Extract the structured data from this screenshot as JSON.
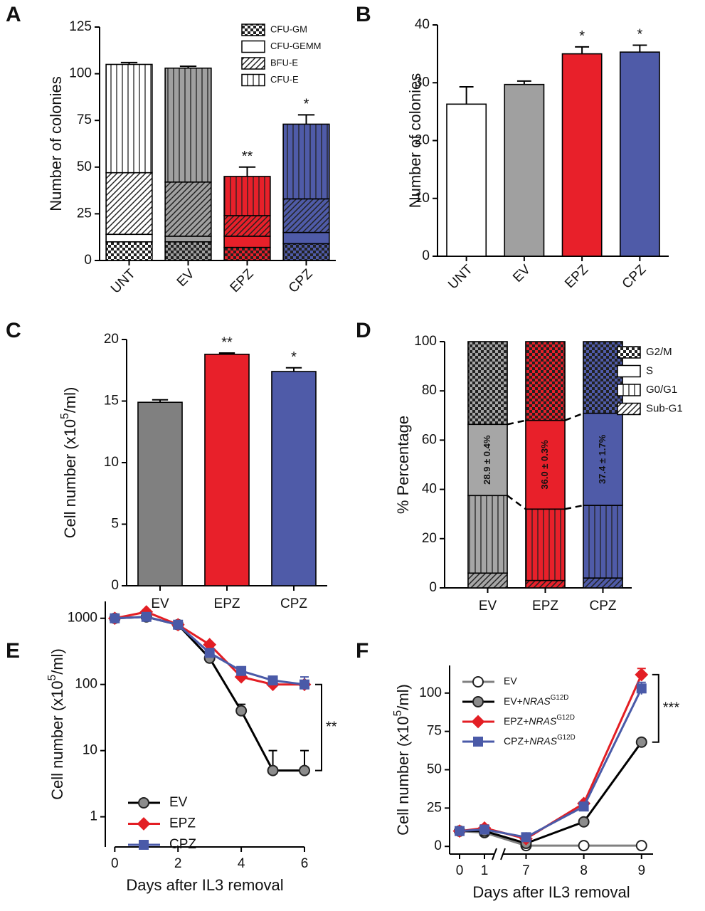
{
  "chart_data": [
    {
      "panel": "A",
      "type": "stacked_bar",
      "ylabel": "Number of colonies",
      "categories": [
        "UNT",
        "EV",
        "EPZ",
        "CPZ"
      ],
      "bar_colors": [
        "#ffffff",
        "#a0a0a0",
        "#e8202a",
        "#4f5ba8"
      ],
      "series": [
        {
          "name": "CFU-GM",
          "pattern": "checker",
          "values": [
            10,
            10,
            7,
            9
          ]
        },
        {
          "name": "CFU-GEMM",
          "pattern": "none",
          "values": [
            4,
            3,
            6,
            6
          ]
        },
        {
          "name": "BFU-E",
          "pattern": "diagonal",
          "values": [
            33,
            29,
            11,
            18
          ]
        },
        {
          "name": "CFU-E",
          "pattern": "vertical",
          "values": [
            58,
            61,
            21,
            40
          ],
          "errors": [
            1,
            1,
            5,
            5
          ]
        }
      ],
      "ylim": [
        0,
        125
      ],
      "yticks": [
        0,
        25,
        50,
        75,
        100,
        125
      ],
      "annotations": [
        {
          "text": "**",
          "category": "EPZ"
        },
        {
          "text": "*",
          "category": "CPZ"
        }
      ]
    },
    {
      "panel": "B",
      "type": "bar",
      "ylabel": "Number of colonies",
      "categories": [
        "UNT",
        "EV",
        "EPZ",
        "CPZ"
      ],
      "bar_colors": [
        "#ffffff",
        "#a0a0a0",
        "#e8202a",
        "#4f5ba8"
      ],
      "values": [
        26.3,
        29.7,
        35,
        35.3
      ],
      "errors": [
        3,
        0.6,
        1.2,
        1.2
      ],
      "ylim": [
        0,
        40
      ],
      "yticks": [
        0,
        10,
        20,
        30,
        40
      ],
      "annotations": [
        {
          "text": "*",
          "category": "EPZ"
        },
        {
          "text": "*",
          "category": "CPZ"
        }
      ]
    },
    {
      "panel": "C",
      "type": "bar",
      "ylabel": [
        "Cell number  (x10",
        "5",
        "/ml)"
      ],
      "categories": [
        "EV",
        "EPZ",
        "CPZ"
      ],
      "bar_colors": [
        "#808080",
        "#e8202a",
        "#4f5ba8"
      ],
      "values": [
        14.9,
        18.8,
        17.4
      ],
      "errors": [
        0.2,
        0.1,
        0.3
      ],
      "ylim": [
        0,
        20
      ],
      "yticks": [
        0,
        5,
        10,
        15,
        20
      ],
      "annotations": [
        {
          "text": "**",
          "category": "EPZ"
        },
        {
          "text": "*",
          "category": "CPZ"
        }
      ]
    },
    {
      "panel": "D",
      "type": "stacked_bar",
      "ylabel": "% Percentage",
      "categories": [
        "EV",
        "EPZ",
        "CPZ"
      ],
      "bar_colors": [
        "#a6a6a6",
        "#e8202a",
        "#4f5ba8"
      ],
      "series": [
        {
          "name": "Sub-G1",
          "pattern": "diagonal",
          "values": [
            6,
            3,
            4
          ]
        },
        {
          "name": "G0/G1",
          "pattern": "vertical",
          "values": [
            31.5,
            29,
            29.5
          ]
        },
        {
          "name": "S",
          "pattern": "none",
          "values": [
            28.9,
            36,
            37.4
          ],
          "value_labels": [
            "28.9 ± 0.4%",
            "36.0 ± 0.3%",
            "37.4 ± 1.7%"
          ]
        },
        {
          "name": "G2/M",
          "pattern": "checker",
          "values": [
            33.6,
            32,
            29.1
          ]
        }
      ],
      "ylim": [
        0,
        100
      ],
      "yticks": [
        0,
        20,
        40,
        60,
        80,
        100
      ]
    },
    {
      "panel": "E",
      "type": "line",
      "yscale": "log",
      "xlabel": "Days after IL3 removal",
      "ylabel": [
        "Cell number  (x10",
        "5",
        "/ml)"
      ],
      "x": [
        0,
        1,
        2,
        3,
        4,
        5,
        6
      ],
      "xlim": [
        -0.3,
        6
      ],
      "xticks": [
        0,
        2,
        4,
        6
      ],
      "ylim": [
        0.35,
        1800
      ],
      "yticks": [
        1,
        10,
        100,
        1000
      ],
      "series": [
        {
          "name": "EV",
          "color": "#000000",
          "marker_fill": "#8c8c8c",
          "marker": "circle",
          "values": [
            1000,
            1050,
            800,
            250,
            40,
            5,
            5
          ],
          "errors": [
            0,
            0,
            0,
            30,
            10,
            5,
            5
          ]
        },
        {
          "name": "EPZ",
          "color": "#e31e24",
          "marker": "diamond",
          "values": [
            1000,
            1250,
            800,
            400,
            130,
            100,
            100
          ],
          "errors": [
            0,
            0,
            0,
            0,
            0,
            0,
            0
          ]
        },
        {
          "name": "CPZ",
          "color": "#4a5aa8",
          "marker": "square",
          "values": [
            1000,
            1050,
            800,
            300,
            160,
            115,
            100
          ],
          "errors": [
            0,
            0,
            0,
            0,
            20,
            0,
            30
          ]
        }
      ],
      "annotations": [
        {
          "text": "**"
        }
      ]
    },
    {
      "panel": "F",
      "type": "line",
      "xlabel": "Days after IL3 removal",
      "ylabel": [
        "Cell number  (x10",
        "5",
        "/ml)"
      ],
      "x": [
        0,
        1,
        7,
        8,
        9
      ],
      "xlim": [
        -0.4,
        9.2
      ],
      "x_break": [
        1.4,
        6.6
      ],
      "xticks": [
        0,
        1,
        7,
        8,
        9
      ],
      "ylim": [
        -5,
        118
      ],
      "yticks": [
        0,
        25,
        50,
        75,
        100
      ],
      "series": [
        {
          "name": "EV",
          "color": "#808080",
          "marker_fill": "#ffffff",
          "marker": "circle",
          "values": [
            10,
            9,
            0.5,
            0.5,
            0.5
          ],
          "errors": [
            1,
            1,
            0,
            0,
            0
          ]
        },
        {
          "name": [
            "EV+",
            "NRAS",
            "G12D"
          ],
          "color": "#000000",
          "marker_fill": "#8c8c8c",
          "marker": "circle",
          "values": [
            10,
            10,
            2,
            16,
            68
          ],
          "errors": [
            1,
            2,
            1,
            1,
            2
          ]
        },
        {
          "name": [
            "EPZ+",
            "NRAS",
            "G12D"
          ],
          "color": "#e31e24",
          "marker": "diamond",
          "values": [
            10,
            12,
            5,
            28,
            112
          ],
          "errors": [
            1,
            2,
            1,
            1,
            4
          ]
        },
        {
          "name": [
            "CPZ+",
            "NRAS",
            "G12D"
          ],
          "color": "#4a5aa8",
          "marker": "square",
          "values": [
            10,
            11,
            6,
            26,
            103
          ],
          "errors": [
            1,
            2,
            1,
            2,
            4
          ]
        }
      ],
      "annotations": [
        {
          "text": "***"
        }
      ]
    }
  ]
}
